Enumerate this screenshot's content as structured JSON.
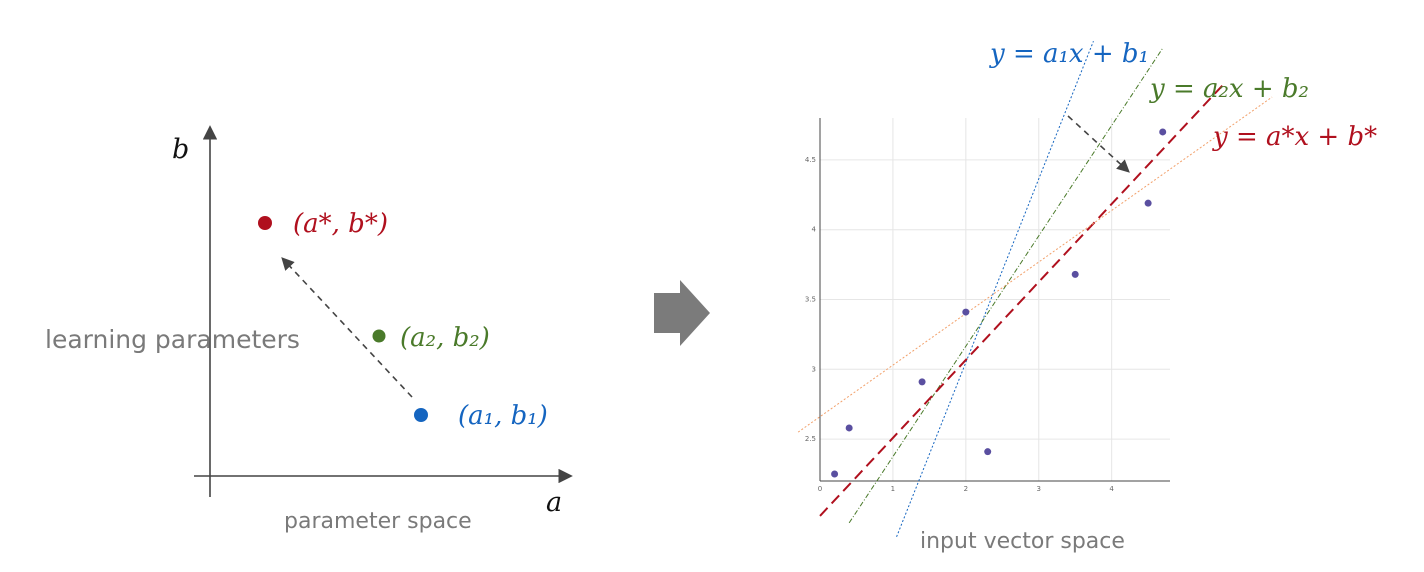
{
  "colors": {
    "blue": "#1565c0",
    "green": "#4a7a2a",
    "red": "#b0101e",
    "gray_text": "#7a7a7a",
    "axis": "#444444",
    "arrow_block": "#7b7b7b",
    "orange": "#f2a06a",
    "point": "#5a4fa0"
  },
  "left": {
    "axis_y_label": "b",
    "axis_x_label": "a",
    "caption": "parameter space",
    "side_label": "learning parameters",
    "points": [
      {
        "label": "(a*, b*)",
        "color_key": "red"
      },
      {
        "label": "(a₂, b₂)",
        "color_key": "green"
      },
      {
        "label": "(a₁, b₁)",
        "color_key": "blue"
      }
    ]
  },
  "transform_arrow_icon": "right-block-arrow-icon",
  "right": {
    "caption": "input vector space",
    "eq_blue": "y = a₁x + b₁",
    "eq_green": "y = a₂x + b₂",
    "eq_red": "y = a*x + b*",
    "x_ticks": [
      "0",
      "1",
      "2",
      "3",
      "4"
    ],
    "y_ticks": [
      "2.5",
      "3",
      "3.5",
      "4",
      "4.5"
    ]
  },
  "chart_data": {
    "type": "scatter",
    "xlim": [
      0,
      4.8
    ],
    "ylim": [
      2.2,
      4.8
    ],
    "grid": true,
    "points": [
      {
        "x": 0.2,
        "y": 2.25
      },
      {
        "x": 0.4,
        "y": 2.58
      },
      {
        "x": 1.4,
        "y": 2.91
      },
      {
        "x": 2.0,
        "y": 3.41
      },
      {
        "x": 2.3,
        "y": 2.41
      },
      {
        "x": 3.5,
        "y": 3.68
      },
      {
        "x": 4.5,
        "y": 4.19
      },
      {
        "x": 4.7,
        "y": 4.7
      }
    ],
    "lines": [
      {
        "name": "y = a₁x + b₁",
        "color_key": "blue",
        "style": "dotted",
        "from": [
          1.05,
          1.8
        ],
        "to": [
          3.75,
          5.35
        ]
      },
      {
        "name": "y = a₂x + b₂",
        "color_key": "green",
        "style": "dash-dot",
        "from": [
          0.4,
          1.9
        ],
        "to": [
          4.7,
          5.3
        ]
      },
      {
        "name": "y = a*x + b*",
        "color_key": "red",
        "style": "dashed",
        "from": [
          0.0,
          1.95
        ],
        "to": [
          5.55,
          5.05
        ]
      },
      {
        "name": "",
        "color_key": "orange",
        "style": "dotted",
        "from": [
          -0.3,
          2.55
        ],
        "to": [
          6.2,
          4.95
        ]
      }
    ]
  }
}
